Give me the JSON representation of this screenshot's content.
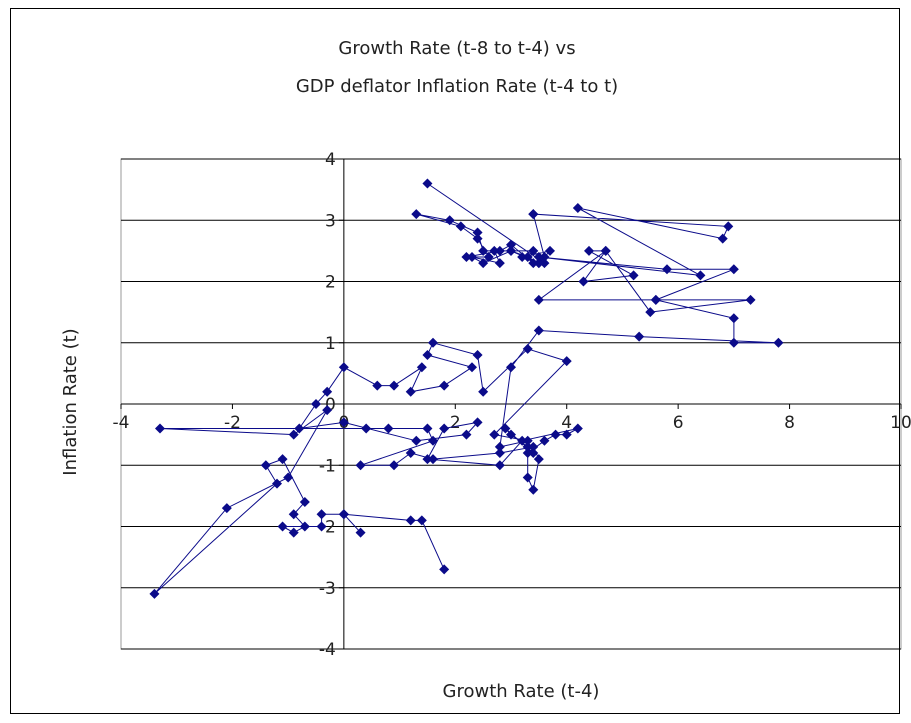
{
  "chart_data": {
    "type": "scatter",
    "mode": "lines+markers",
    "title_lines": [
      "Growth Rate (t-8 to t-4) vs",
      "GDP deflator Inflation Rate (t-4 to t)"
    ],
    "xlabel": "Growth Rate (t-4)",
    "ylabel": "Inflation Rate (t)",
    "xlim": [
      -4,
      10
    ],
    "ylim": [
      -4,
      4
    ],
    "x_ticks": [
      -4,
      -2,
      0,
      2,
      4,
      6,
      8,
      10
    ],
    "y_ticks": [
      -4,
      -3,
      -2,
      -1,
      0,
      1,
      2,
      3,
      4
    ],
    "x_tick_labels": [
      "-4",
      "-2",
      "0",
      "2",
      "4",
      "6",
      "8",
      "10"
    ],
    "y_tick_labels": [
      "-4",
      "-3",
      "-2",
      "-1",
      "0",
      "1",
      "2",
      "3",
      "4"
    ],
    "grid": "horizontal",
    "legend": "none",
    "colors": {
      "series": "#0b0b8a",
      "grid": "#000000",
      "background": "#ffffff"
    },
    "series": [
      {
        "x": [
          1.5,
          3.6,
          3.4,
          2.7,
          2.8,
          2.3,
          2.5,
          3.0,
          3.3,
          3.5,
          3.7,
          3.2,
          3.5,
          3.0,
          2.5,
          2.4,
          1.9,
          1.3,
          2.1,
          2.4,
          2.6,
          2.2,
          2.8,
          3.0,
          3.4,
          3.6,
          3.4,
          3.4,
          6.9,
          6.8,
          4.2,
          6.4,
          3.5,
          5.8,
          7.0,
          5.6,
          7.3,
          5.5,
          4.7,
          4.4,
          5.2,
          4.3,
          4.7,
          3.5,
          5.6,
          7.0,
          7.0,
          7.8,
          5.3,
          3.5,
          3.0,
          2.8,
          3.3,
          2.7,
          4.0,
          3.3,
          2.5,
          2.4,
          1.6,
          1.5,
          2.3,
          1.8,
          1.2,
          1.4,
          0.9,
          0.6,
          0.0,
          -0.3,
          -0.5,
          -0.8,
          0.0,
          1.3,
          2.2,
          2.4,
          1.8,
          1.5,
          2.8,
          3.2,
          4.2,
          4.0,
          3.8,
          3.6,
          3.3,
          3.4,
          2.9,
          3.0,
          3.3,
          3.3,
          3.3,
          3.4,
          3.5,
          3.4,
          2.8,
          1.6,
          1.2,
          0.9,
          0.3,
          1.6,
          1.5,
          0.8,
          0.4,
          -3.3,
          -0.9,
          -0.3,
          -1.0,
          -2.1,
          -3.4,
          -1.2,
          -1.4,
          -1.1,
          -0.7,
          -0.9,
          -0.7,
          -0.9,
          -1.1,
          -0.4,
          -0.4,
          0.0,
          0.3,
          0.0,
          1.2,
          1.4,
          1.8
        ],
        "y": [
          3.6,
          2.3,
          2.5,
          2.5,
          2.3,
          2.4,
          2.3,
          2.5,
          2.4,
          2.3,
          2.5,
          2.4,
          2.3,
          2.5,
          2.5,
          2.8,
          3.0,
          3.1,
          2.9,
          2.7,
          2.4,
          2.4,
          2.5,
          2.6,
          2.3,
          2.4,
          3.1,
          3.1,
          2.9,
          2.7,
          3.2,
          2.1,
          2.4,
          2.2,
          2.2,
          1.7,
          1.7,
          1.5,
          2.5,
          2.5,
          2.1,
          2.0,
          2.5,
          1.7,
          1.7,
          1.4,
          1.0,
          1.0,
          1.1,
          1.2,
          0.6,
          -0.7,
          -0.6,
          -0.5,
          0.7,
          0.9,
          0.2,
          0.8,
          1.0,
          0.8,
          0.6,
          0.3,
          0.2,
          0.6,
          0.3,
          0.3,
          0.6,
          0.2,
          0.0,
          -0.4,
          -0.3,
          -0.6,
          -0.5,
          -0.3,
          -0.4,
          -0.9,
          -1.0,
          -0.6,
          -0.4,
          -0.5,
          -0.5,
          -0.6,
          -0.8,
          -0.8,
          -0.4,
          -0.5,
          -0.7,
          -0.7,
          -1.2,
          -1.4,
          -0.9,
          -0.7,
          -0.8,
          -0.9,
          -0.8,
          -1.0,
          -1.0,
          -0.6,
          -0.4,
          -0.4,
          -0.4,
          -0.4,
          -0.5,
          -0.1,
          -1.2,
          -1.7,
          -3.1,
          -1.3,
          -1.0,
          -0.9,
          -1.6,
          -1.8,
          -2.0,
          -2.1,
          -2.0,
          -2.0,
          -1.8,
          -1.8,
          -2.1,
          -1.8,
          -1.9,
          -1.9,
          -2.7
        ]
      }
    ]
  }
}
